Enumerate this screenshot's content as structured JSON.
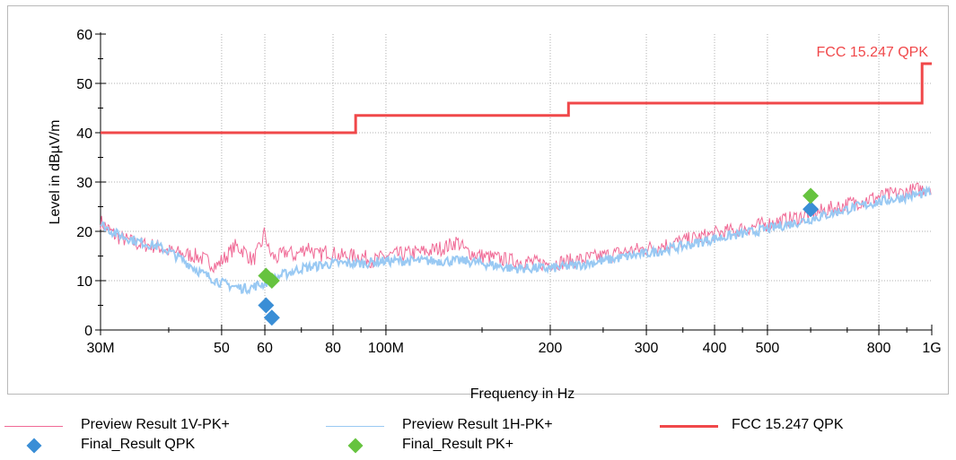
{
  "chart_data": {
    "type": "line",
    "title": "",
    "xlabel": "Frequency in Hz",
    "ylabel": "Level in dBµV/m",
    "x_scale": "log",
    "xlim": [
      30,
      1000
    ],
    "ylim": [
      0,
      60
    ],
    "grid": true,
    "x_ticks": [
      {
        "value": 30,
        "label": "30M"
      },
      {
        "value": 50,
        "label": "50"
      },
      {
        "value": 60,
        "label": "60"
      },
      {
        "value": 80,
        "label": "80"
      },
      {
        "value": 100,
        "label": "100M"
      },
      {
        "value": 200,
        "label": "200"
      },
      {
        "value": 300,
        "label": "300"
      },
      {
        "value": 400,
        "label": "400"
      },
      {
        "value": 500,
        "label": "500"
      },
      {
        "value": 800,
        "label": "800"
      },
      {
        "value": 1000,
        "label": "1G"
      }
    ],
    "y_ticks": [
      0,
      10,
      20,
      30,
      40,
      50,
      60
    ],
    "series": [
      {
        "name": "Preview Result 1V-PK+",
        "color": "#f06a96",
        "x": [
          30,
          32,
          35,
          38,
          40,
          42,
          45,
          47,
          49,
          51,
          53,
          55,
          57,
          59,
          60,
          61,
          62,
          63,
          64,
          66,
          68,
          70,
          72,
          75,
          78,
          82,
          85,
          90,
          95,
          100,
          110,
          120,
          130,
          135,
          140,
          150,
          160,
          170,
          180,
          190,
          200,
          220,
          250,
          280,
          300,
          350,
          400,
          450,
          500,
          550,
          600,
          650,
          700,
          800,
          900,
          1000
        ],
        "y": [
          22,
          19,
          17.5,
          17,
          16,
          15.5,
          15,
          14,
          13,
          15,
          17,
          16,
          14,
          17,
          20,
          16,
          15,
          14.5,
          15,
          16,
          15,
          16,
          17,
          15,
          16,
          15,
          15,
          15,
          14,
          15,
          15.5,
          16,
          17,
          18,
          16,
          15,
          14.5,
          14,
          14,
          13.5,
          13.5,
          14,
          15,
          16,
          16.5,
          18,
          19.5,
          20.5,
          21.5,
          22.5,
          23.5,
          24.5,
          25.5,
          27,
          28,
          29
        ]
      },
      {
        "name": "Preview Result 1H-PK+",
        "color": "#99c9f3",
        "x": [
          30,
          32,
          35,
          38,
          40,
          42,
          44,
          46,
          48,
          50,
          52,
          54,
          56,
          58,
          60,
          62,
          64,
          66,
          70,
          75,
          80,
          90,
          100,
          110,
          120,
          130,
          140,
          150,
          160,
          170,
          180,
          190,
          200,
          220,
          250,
          280,
          300,
          350,
          400,
          450,
          500,
          550,
          600,
          650,
          700,
          800,
          900,
          1000
        ],
        "y": [
          21.5,
          19.5,
          18,
          17,
          16,
          14.5,
          13,
          11.5,
          10.5,
          9.5,
          9,
          8.5,
          8.5,
          9,
          9.5,
          10,
          11,
          11.5,
          12.5,
          13,
          13.5,
          13.5,
          14,
          14,
          14,
          14,
          14,
          13.5,
          13,
          12.5,
          12.5,
          12.5,
          12.5,
          13,
          14,
          15,
          15.5,
          17,
          18.5,
          19.5,
          20.5,
          21.5,
          22.5,
          23.5,
          24.5,
          26,
          27,
          28
        ]
      },
      {
        "name": "FCC 15.247 QPK",
        "color": "#f0484a",
        "x": [
          30,
          88,
          88,
          216,
          216,
          960,
          960,
          1000
        ],
        "y": [
          40,
          40,
          43.5,
          43.5,
          46,
          46,
          54,
          54
        ]
      }
    ],
    "markers": [
      {
        "name": "Final_Result QPK",
        "color": "#3a8ed6",
        "points": [
          {
            "x": 60.3,
            "y": 5
          },
          {
            "x": 61.8,
            "y": 2.5
          },
          {
            "x": 600,
            "y": 24.5
          }
        ]
      },
      {
        "name": "Final_Result PK+",
        "color": "#66c33f",
        "points": [
          {
            "x": 60.3,
            "y": 11
          },
          {
            "x": 61.8,
            "y": 10
          },
          {
            "x": 600,
            "y": 27.2
          }
        ]
      }
    ],
    "limit_label": {
      "text": "FCC 15.247 QPK",
      "color": "#f0484a"
    },
    "legend": {
      "placement": "bottom",
      "entries": [
        {
          "label": "Preview Result 1V-PK+",
          "kind": "line",
          "color": "#f06a96"
        },
        {
          "label": "Preview Result 1H-PK+",
          "kind": "line",
          "color": "#99c9f3"
        },
        {
          "label": "FCC 15.247 QPK",
          "kind": "line",
          "color": "#f0484a"
        },
        {
          "label": "Final_Result QPK",
          "kind": "diamond",
          "color": "#3a8ed6"
        },
        {
          "label": "Final_Result PK+",
          "kind": "diamond",
          "color": "#66c33f"
        }
      ]
    }
  }
}
